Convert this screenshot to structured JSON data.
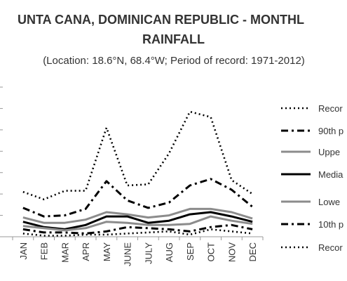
{
  "chart_data": {
    "type": "line",
    "title": "PUNTA CANA, DOMINICAN REPUBLIC - MONTHLY RAINFALL",
    "title_line1": "UNTA CANA, DOMINICAN REPUBLIC - MONTHL",
    "title_line2": "RAINFALL",
    "subtitle": "(Location: 18.6°N, 68.4°W; Period of record: 1971-2012)",
    "categories": [
      "JAN",
      "FEB",
      "MAR",
      "APR",
      "MAY",
      "JUNE",
      "JULY",
      "AUG",
      "SEP",
      "OCT",
      "NOV",
      "DEC"
    ],
    "ylim": [
      0,
      7
    ],
    "grid": false,
    "legend_position": "right",
    "series": [
      {
        "name": "Recor",
        "style": "dotted",
        "color": "#000000",
        "values": [
          2.1,
          1.75,
          2.15,
          2.15,
          5.1,
          2.4,
          2.45,
          3.9,
          5.85,
          5.6,
          2.65,
          2.0
        ]
      },
      {
        "name": "90th p",
        "style": "dash-dot",
        "color": "#000000",
        "values": [
          1.35,
          0.95,
          1.0,
          1.3,
          2.6,
          1.7,
          1.35,
          1.6,
          2.4,
          2.7,
          2.2,
          1.4
        ]
      },
      {
        "name": "Uppe",
        "style": "solid",
        "color": "#8c8c8c",
        "values": [
          0.9,
          0.65,
          0.65,
          0.8,
          1.15,
          1.05,
          0.9,
          1.0,
          1.3,
          1.3,
          1.15,
          0.85
        ]
      },
      {
        "name": "Media",
        "style": "solid",
        "color": "#000000",
        "values": [
          0.7,
          0.45,
          0.35,
          0.55,
          0.95,
          0.95,
          0.65,
          0.75,
          1.05,
          1.15,
          0.95,
          0.7
        ]
      },
      {
        "name": "Lowe",
        "style": "solid",
        "color": "#8c8c8c",
        "values": [
          0.5,
          0.4,
          0.3,
          0.4,
          0.7,
          0.65,
          0.55,
          0.55,
          0.6,
          0.95,
          0.75,
          0.6
        ]
      },
      {
        "name": "10th p",
        "style": "dash-dot",
        "color": "#000000",
        "values": [
          0.35,
          0.2,
          0.2,
          0.15,
          0.25,
          0.45,
          0.4,
          0.35,
          0.25,
          0.45,
          0.55,
          0.35
        ]
      },
      {
        "name": "Recor",
        "style": "dotted",
        "color": "#000000",
        "values": [
          0.15,
          0.05,
          0.05,
          0.1,
          0.1,
          0.15,
          0.2,
          0.25,
          0.1,
          0.35,
          0.25,
          0.15
        ]
      }
    ]
  }
}
